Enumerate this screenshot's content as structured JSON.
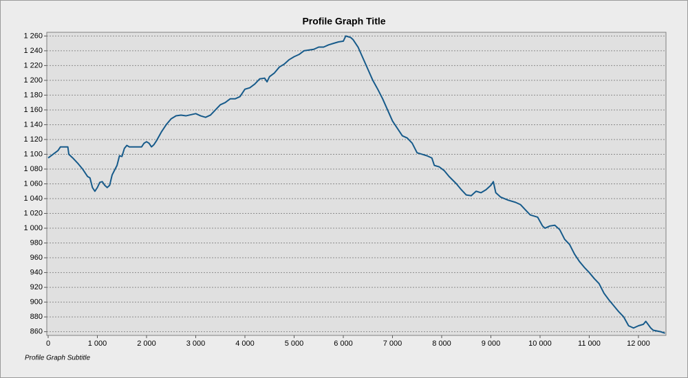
{
  "chart_data": {
    "type": "line",
    "title": "Profile Graph Title",
    "subtitle": "Profile Graph Subtitle",
    "color": "#165a8a",
    "grid": true,
    "x": [
      0,
      100,
      200,
      250,
      400,
      420,
      500,
      600,
      700,
      800,
      850,
      900,
      950,
      1000,
      1050,
      1100,
      1150,
      1200,
      1250,
      1300,
      1400,
      1450,
      1500,
      1550,
      1600,
      1650,
      1900,
      1950,
      2000,
      2050,
      2100,
      2150,
      2200,
      2300,
      2400,
      2500,
      2600,
      2700,
      2800,
      3000,
      3100,
      3200,
      3300,
      3400,
      3500,
      3600,
      3700,
      3800,
      3900,
      4000,
      4100,
      4200,
      4300,
      4400,
      4450,
      4500,
      4600,
      4700,
      4800,
      4900,
      5000,
      5100,
      5200,
      5400,
      5500,
      5600,
      5700,
      5800,
      5900,
      6000,
      6050,
      6150,
      6200,
      6300,
      6400,
      6500,
      6600,
      6700,
      6800,
      6900,
      7000,
      7100,
      7200,
      7300,
      7400,
      7500,
      7600,
      7700,
      7800,
      7850,
      7950,
      8050,
      8150,
      8300,
      8400,
      8500,
      8600,
      8700,
      8800,
      8900,
      9000,
      9050,
      9100,
      9200,
      9350,
      9500,
      9600,
      9700,
      9800,
      9950,
      10050,
      10100,
      10200,
      10300,
      10400,
      10500,
      10600,
      10700,
      10800,
      10900,
      11000,
      11100,
      11200,
      11300,
      11400,
      11500,
      11600,
      11700,
      11800,
      11900,
      12000,
      12100,
      12150,
      12250,
      12300,
      12450,
      12540
    ],
    "values": [
      1095,
      1100,
      1105,
      1110,
      1110,
      1100,
      1095,
      1088,
      1080,
      1070,
      1068,
      1055,
      1050,
      1055,
      1062,
      1063,
      1058,
      1055,
      1058,
      1072,
      1085,
      1098,
      1097,
      1108,
      1112,
      1110,
      1110,
      1115,
      1117,
      1115,
      1110,
      1113,
      1118,
      1130,
      1140,
      1148,
      1152,
      1153,
      1152,
      1155,
      1152,
      1150,
      1153,
      1160,
      1167,
      1170,
      1175,
      1175,
      1178,
      1188,
      1190,
      1195,
      1202,
      1203,
      1198,
      1205,
      1210,
      1218,
      1222,
      1228,
      1232,
      1235,
      1240,
      1242,
      1245,
      1245,
      1248,
      1250,
      1252,
      1253,
      1260,
      1258,
      1255,
      1245,
      1230,
      1215,
      1200,
      1188,
      1175,
      1160,
      1145,
      1135,
      1125,
      1122,
      1115,
      1102,
      1100,
      1098,
      1095,
      1085,
      1083,
      1078,
      1070,
      1060,
      1052,
      1045,
      1044,
      1050,
      1048,
      1052,
      1058,
      1063,
      1048,
      1042,
      1038,
      1035,
      1032,
      1025,
      1018,
      1015,
      1003,
      1000,
      1003,
      1004,
      998,
      985,
      978,
      965,
      955,
      947,
      940,
      932,
      925,
      912,
      903,
      895,
      887,
      880,
      868,
      865,
      868,
      870,
      874,
      865,
      862,
      860,
      858
    ],
    "xlim": [
      -28,
      12560
    ],
    "ylim": [
      855,
      1265
    ],
    "xticks": [
      0,
      {
        "value": 1000,
        "label": "1 000"
      },
      {
        "value": 2000,
        "label": "2 000"
      },
      {
        "value": 3000,
        "label": "3 000"
      },
      {
        "value": 4000,
        "label": "4 000"
      },
      {
        "value": 5000,
        "label": "5 000"
      },
      {
        "value": 6000,
        "label": "6 000"
      },
      {
        "value": 7000,
        "label": "7 000"
      },
      {
        "value": 8000,
        "label": "8 000"
      },
      {
        "value": 9000,
        "label": "9 000"
      },
      {
        "value": 10000,
        "label": "10 000"
      },
      {
        "value": 11000,
        "label": "11 000"
      },
      {
        "value": 12000,
        "label": "12 000"
      }
    ],
    "yticks": [
      860,
      880,
      900,
      920,
      940,
      960,
      980,
      {
        "value": 1000,
        "label": "1 000"
      },
      {
        "value": 1020,
        "label": "1 020"
      },
      {
        "value": 1040,
        "label": "1 040"
      },
      {
        "value": 1060,
        "label": "1 060"
      },
      {
        "value": 1080,
        "label": "1 080"
      },
      {
        "value": 1100,
        "label": "1 100"
      },
      {
        "value": 1120,
        "label": "1 120"
      },
      {
        "value": 1140,
        "label": "1 140"
      },
      {
        "value": 1160,
        "label": "1 160"
      },
      {
        "value": 1180,
        "label": "1 180"
      },
      {
        "value": 1200,
        "label": "1 200"
      },
      {
        "value": 1220,
        "label": "1 220"
      },
      {
        "value": 1240,
        "label": "1 240"
      },
      {
        "value": 1260,
        "label": "1 260"
      }
    ]
  }
}
